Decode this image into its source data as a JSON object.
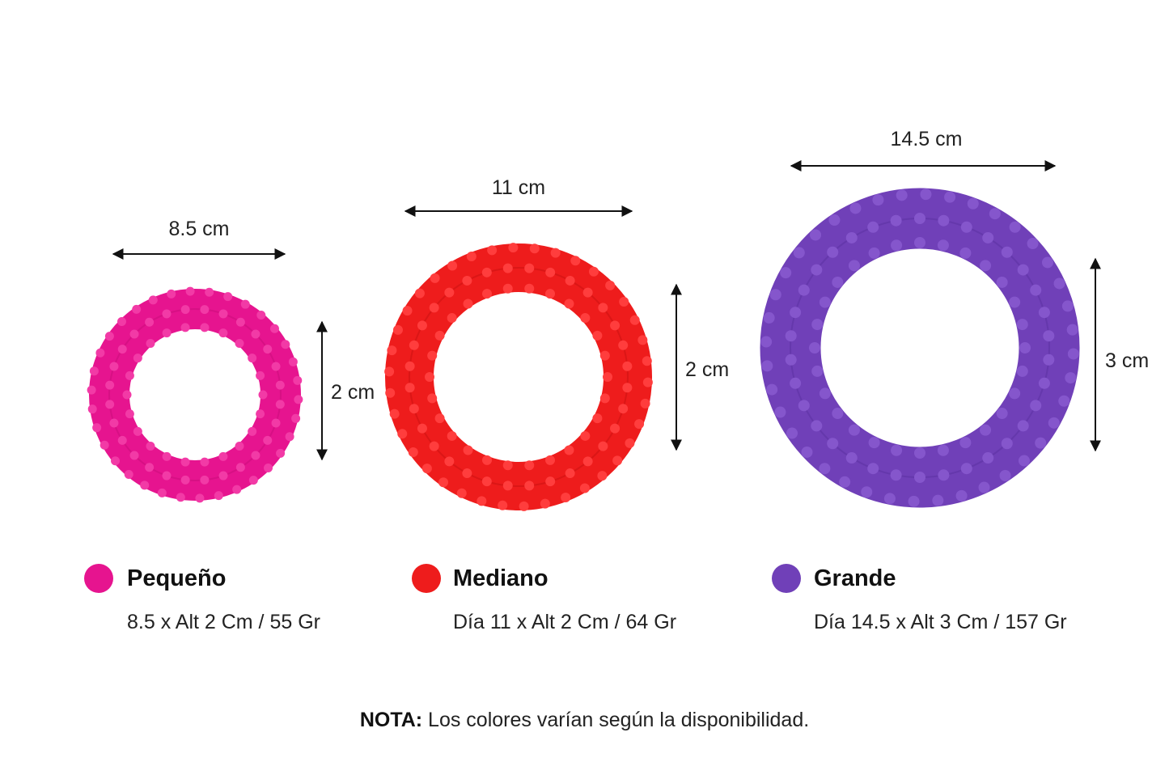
{
  "rings": [
    {
      "size_label": "Pequeño",
      "spec": "8.5 x Alt 2 Cm / 55 Gr",
      "width_label": "8.5 cm",
      "height_label": "2 cm",
      "color": "#e6148f"
    },
    {
      "size_label": "Mediano",
      "spec": "Día 11 x Alt 2 Cm / 64 Gr",
      "width_label": "11 cm",
      "height_label": "2 cm",
      "color": "#ee1c1c"
    },
    {
      "size_label": "Grande",
      "spec": "Día 14.5 x Alt 3 Cm / 157 Gr",
      "width_label": "14.5 cm",
      "height_label": "3 cm",
      "color": "#7040b8"
    }
  ],
  "note": {
    "label": "NOTA:",
    "text": " Los colores varían según la disponibilidad."
  }
}
